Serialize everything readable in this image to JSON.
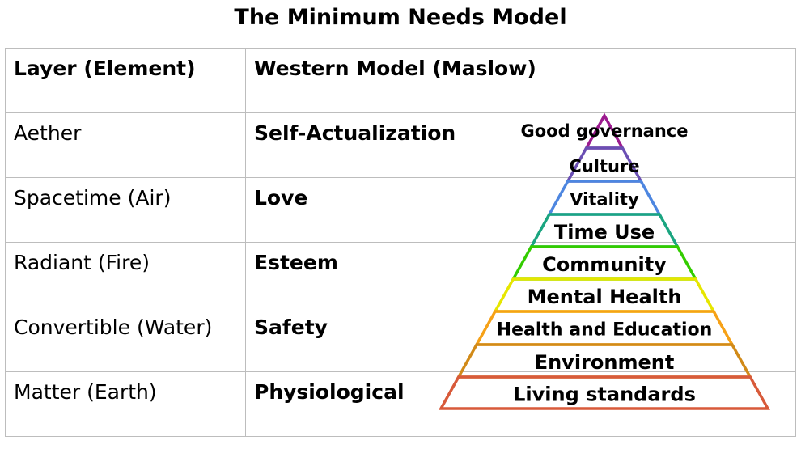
{
  "title": "The Minimum Needs Model",
  "table": {
    "headers": [
      "Layer (Element)",
      "Western Model (Maslow)"
    ],
    "rows": [
      {
        "layer": "Aether",
        "western": "Self-Actualization"
      },
      {
        "layer": "Spacetime (Air)",
        "western": "Love"
      },
      {
        "layer": "Radiant (Fire)",
        "western": "Esteem"
      },
      {
        "layer": "Convertible (Water)",
        "western": "Safety"
      },
      {
        "layer": "Matter (Earth)",
        "western": "Physiological"
      }
    ]
  },
  "pyramid": {
    "levels": [
      {
        "label": "Good governance",
        "color": "#9c1b8f"
      },
      {
        "label": "Culture",
        "color": "#6a4fb3"
      },
      {
        "label": "Vitality",
        "color": "#4d86e0"
      },
      {
        "label": "Time Use",
        "color": "#1aa580"
      },
      {
        "label": "Community",
        "color": "#33cc00"
      },
      {
        "label": "Mental Health",
        "color": "#e6e600"
      },
      {
        "label": "Health and Education",
        "color": "#f6a117"
      },
      {
        "label": "Environment",
        "color": "#d18a18"
      },
      {
        "label": "Living standards",
        "color": "#d85a3a"
      }
    ]
  }
}
